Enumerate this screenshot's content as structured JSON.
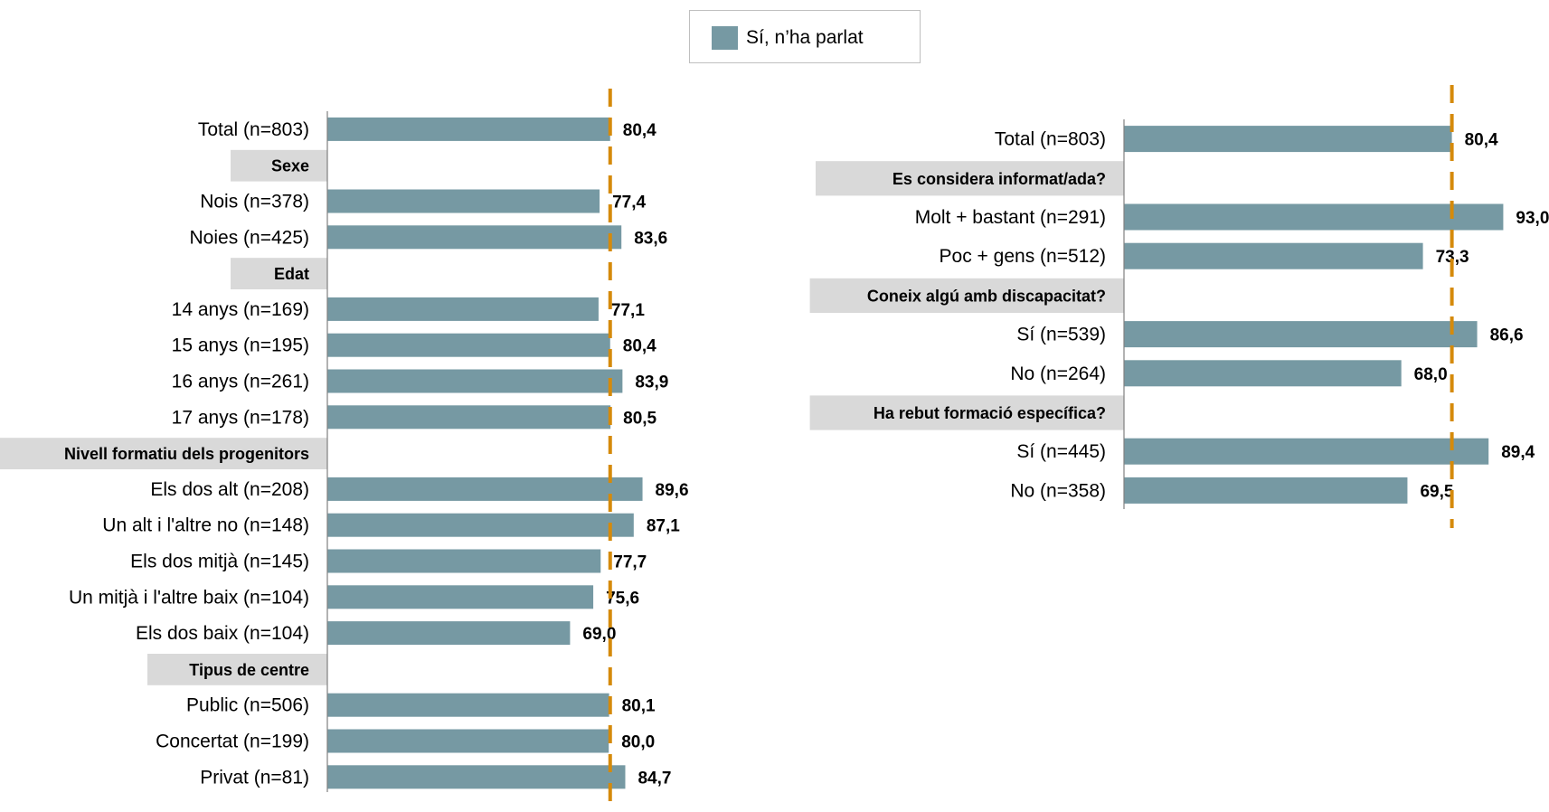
{
  "legend": {
    "label": "Sí, n’ha parlat",
    "color": "#7699a3"
  },
  "colors": {
    "bar": "#7699a3",
    "reference_line": "#d58a0b",
    "group_band": "#d9d9d9",
    "axis": "#808080"
  },
  "chart_data": [
    {
      "type": "bar",
      "orientation": "horizontal",
      "series": [
        {
          "name": "Sí, n’ha parlat"
        }
      ],
      "reference_line": 80.4,
      "xlim": [
        0,
        100
      ],
      "rows": [
        {
          "kind": "item",
          "label": "Total (n=803)",
          "value": 80.4,
          "value_label": "80,4"
        },
        {
          "kind": "group",
          "label": "Sexe"
        },
        {
          "kind": "item",
          "label": "Nois (n=378)",
          "value": 77.4,
          "value_label": "77,4"
        },
        {
          "kind": "item",
          "label": "Noies (n=425)",
          "value": 83.6,
          "value_label": "83,6"
        },
        {
          "kind": "group",
          "label": "Edat"
        },
        {
          "kind": "item",
          "label": "14 anys (n=169)",
          "value": 77.1,
          "value_label": "77,1"
        },
        {
          "kind": "item",
          "label": "15 anys (n=195)",
          "value": 80.4,
          "value_label": "80,4"
        },
        {
          "kind": "item",
          "label": "16 anys (n=261)",
          "value": 83.9,
          "value_label": "83,9"
        },
        {
          "kind": "item",
          "label": "17 anys (n=178)",
          "value": 80.5,
          "value_label": "80,5"
        },
        {
          "kind": "group",
          "label": "Nivell formatiu dels progenitors"
        },
        {
          "kind": "item",
          "label": "Els dos alt (n=208)",
          "value": 89.6,
          "value_label": "89,6"
        },
        {
          "kind": "item",
          "label": "Un alt i l'altre no (n=148)",
          "value": 87.1,
          "value_label": "87,1"
        },
        {
          "kind": "item",
          "label": "Els dos mitjà (n=145)",
          "value": 77.7,
          "value_label": "77,7"
        },
        {
          "kind": "item",
          "label": "Un mitjà i l'altre baix (n=104)",
          "value": 75.6,
          "value_label": "75,6"
        },
        {
          "kind": "item",
          "label": "Els dos baix (n=104)",
          "value": 69.0,
          "value_label": "69,0"
        },
        {
          "kind": "group",
          "label": "Tipus de centre"
        },
        {
          "kind": "item",
          "label": "Public (n=506)",
          "value": 80.1,
          "value_label": "80,1"
        },
        {
          "kind": "item",
          "label": "Concertat (n=199)",
          "value": 80.0,
          "value_label": "80,0"
        },
        {
          "kind": "item",
          "label": "Privat (n=81)",
          "value": 84.7,
          "value_label": "84,7"
        }
      ]
    },
    {
      "type": "bar",
      "orientation": "horizontal",
      "series": [
        {
          "name": "Sí, n’ha parlat"
        }
      ],
      "reference_line": 80.4,
      "xlim": [
        0,
        100
      ],
      "rows": [
        {
          "kind": "item",
          "label": "Total (n=803)",
          "value": 80.4,
          "value_label": "80,4"
        },
        {
          "kind": "group",
          "label": "Es considera informat/ada?"
        },
        {
          "kind": "item",
          "label": "Molt + bastant (n=291)",
          "value": 93.0,
          "value_label": "93,0"
        },
        {
          "kind": "item",
          "label": "Poc + gens (n=512)",
          "value": 73.3,
          "value_label": "73,3"
        },
        {
          "kind": "group",
          "label": "Coneix algú amb discapacitat?"
        },
        {
          "kind": "item",
          "label": "Sí (n=539)",
          "value": 86.6,
          "value_label": "86,6"
        },
        {
          "kind": "item",
          "label": "No (n=264)",
          "value": 68.0,
          "value_label": "68,0"
        },
        {
          "kind": "group",
          "label": "Ha rebut formació específica?"
        },
        {
          "kind": "item",
          "label": "Sí (n=445)",
          "value": 89.4,
          "value_label": "89,4"
        },
        {
          "kind": "item",
          "label": "No (n=358)",
          "value": 69.5,
          "value_label": "69,5"
        }
      ]
    }
  ]
}
